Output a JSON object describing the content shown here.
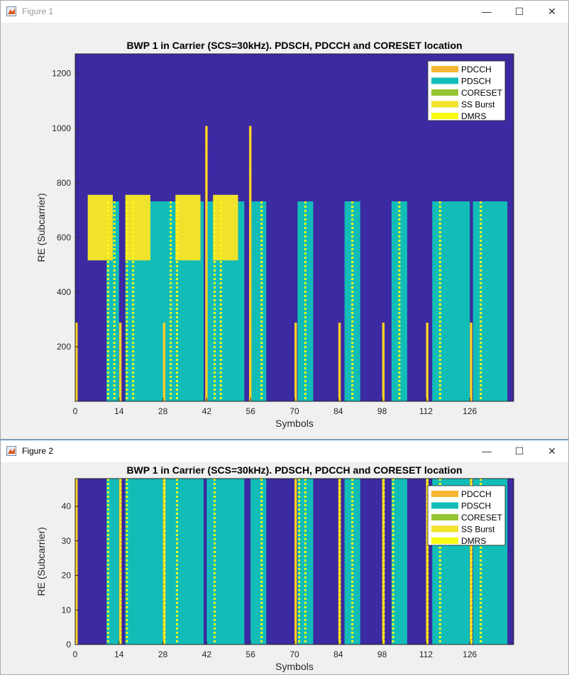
{
  "colors": {
    "background": "#3b2aa1",
    "pdcch": "#f5b731",
    "pdsch": "#12bdb8",
    "coreset": "#97c433",
    "ssburst": "#f1e22c",
    "dmrs": "#f9fb14"
  },
  "windows": [
    {
      "title": "Figure 1"
    },
    {
      "title": "Figure 2"
    }
  ],
  "window_buttons": {
    "minimize": "—",
    "maximize": "☐",
    "close": "✕"
  },
  "chart_data": [
    {
      "type": "heatmap",
      "title": "BWP 1 in Carrier (SCS=30kHz). PDSCH, PDCCH and CORESET location",
      "xlabel": "Symbols",
      "ylabel": "RE (Subcarrier)",
      "xlim": [
        0,
        140
      ],
      "ylim": [
        0,
        1272
      ],
      "xticks": [
        0,
        14,
        28,
        42,
        56,
        70,
        84,
        98,
        112,
        126
      ],
      "yticks": [
        200,
        400,
        600,
        800,
        1000,
        1200
      ],
      "legend": [
        "PDCCH",
        "PDSCH",
        "CORESET",
        "SS Burst",
        "DMRS"
      ],
      "legend_position": "top-right",
      "regions": [
        {
          "type": "pdsch",
          "x0": 10,
          "x1": 14,
          "y0": 0,
          "y1": 732
        },
        {
          "type": "pdsch",
          "x0": 16,
          "x1": 28,
          "y0": 0,
          "y1": 732
        },
        {
          "type": "pdsch",
          "x0": 28,
          "x1": 41,
          "y0": 0,
          "y1": 732
        },
        {
          "type": "pdsch",
          "x0": 42,
          "x1": 54,
          "y0": 0,
          "y1": 732
        },
        {
          "type": "pdsch",
          "x0": 56,
          "x1": 61,
          "y0": 0,
          "y1": 732
        },
        {
          "type": "pdsch",
          "x0": 71,
          "x1": 76,
          "y0": 0,
          "y1": 732
        },
        {
          "type": "pdsch",
          "x0": 86,
          "x1": 91,
          "y0": 0,
          "y1": 732
        },
        {
          "type": "pdsch",
          "x0": 101,
          "x1": 106,
          "y0": 0,
          "y1": 732
        },
        {
          "type": "pdsch",
          "x0": 114,
          "x1": 126,
          "y0": 0,
          "y1": 732
        },
        {
          "type": "pdsch",
          "x0": 127,
          "x1": 138,
          "y0": 0,
          "y1": 732
        },
        {
          "type": "ssburst",
          "x0": 4,
          "x1": 12,
          "y0": 516,
          "y1": 756
        },
        {
          "type": "ssburst",
          "x0": 16,
          "x1": 24,
          "y0": 516,
          "y1": 756
        },
        {
          "type": "ssburst",
          "x0": 32,
          "x1": 40,
          "y0": 516,
          "y1": 756
        },
        {
          "type": "ssburst",
          "x0": 44,
          "x1": 52,
          "y0": 516,
          "y1": 756
        },
        {
          "type": "pdcch",
          "x0": 0,
          "x1": 0.8,
          "y0": 0,
          "y1": 288
        },
        {
          "type": "pdcch",
          "x0": 14,
          "x1": 14.8,
          "y0": 0,
          "y1": 288
        },
        {
          "type": "pdcch",
          "x0": 28,
          "x1": 28.8,
          "y0": 0,
          "y1": 288
        },
        {
          "type": "pdcch",
          "x0": 41.5,
          "x1": 42.3,
          "y0": 0,
          "y1": 1008
        },
        {
          "type": "pdcch",
          "x0": 55.5,
          "x1": 56.3,
          "y0": 0,
          "y1": 1008
        },
        {
          "type": "pdcch",
          "x0": 70,
          "x1": 70.8,
          "y0": 0,
          "y1": 288
        },
        {
          "type": "pdcch",
          "x0": 84,
          "x1": 84.8,
          "y0": 0,
          "y1": 288
        },
        {
          "type": "pdcch",
          "x0": 98,
          "x1": 98.8,
          "y0": 0,
          "y1": 288
        },
        {
          "type": "pdcch",
          "x0": 112,
          "x1": 112.8,
          "y0": 0,
          "y1": 288
        },
        {
          "type": "pdcch",
          "x0": 126,
          "x1": 126.8,
          "y0": 0,
          "y1": 288
        }
      ],
      "dmrs_symbols": [
        10,
        12,
        16,
        18,
        30,
        32,
        44,
        46,
        59,
        73,
        88,
        103,
        116,
        129
      ]
    },
    {
      "type": "heatmap",
      "title": "BWP 1 in Carrier (SCS=30kHz). PDSCH, PDCCH and CORESET location",
      "xlabel": "Symbols",
      "ylabel": "RE (Subcarrier)",
      "xlim": [
        0,
        140
      ],
      "ylim": [
        0,
        48
      ],
      "xticks": [
        0,
        14,
        28,
        42,
        56,
        70,
        84,
        98,
        112,
        126
      ],
      "yticks": [
        0,
        10,
        20,
        30,
        40
      ],
      "legend": [
        "PDCCH",
        "PDSCH",
        "CORESET",
        "SS Burst",
        "DMRS"
      ],
      "legend_position": "top-right",
      "regions": [
        {
          "type": "pdsch",
          "x0": 10,
          "x1": 14,
          "y0": 0,
          "y1": 48
        },
        {
          "type": "pdsch",
          "x0": 16,
          "x1": 28,
          "y0": 0,
          "y1": 48
        },
        {
          "type": "pdsch",
          "x0": 28,
          "x1": 41,
          "y0": 0,
          "y1": 48
        },
        {
          "type": "pdsch",
          "x0": 42,
          "x1": 54,
          "y0": 0,
          "y1": 48
        },
        {
          "type": "pdsch",
          "x0": 56,
          "x1": 61,
          "y0": 0,
          "y1": 48
        },
        {
          "type": "pdsch",
          "x0": 71,
          "x1": 76,
          "y0": 0,
          "y1": 48
        },
        {
          "type": "pdsch",
          "x0": 86,
          "x1": 91,
          "y0": 0,
          "y1": 48
        },
        {
          "type": "pdsch",
          "x0": 101,
          "x1": 106,
          "y0": 0,
          "y1": 48
        },
        {
          "type": "pdsch",
          "x0": 114,
          "x1": 126,
          "y0": 0,
          "y1": 48
        },
        {
          "type": "pdsch",
          "x0": 127,
          "x1": 138,
          "y0": 0,
          "y1": 48
        },
        {
          "type": "pdcch",
          "x0": 0,
          "x1": 0.8,
          "y0": 0,
          "y1": 48
        },
        {
          "type": "pdcch",
          "x0": 14,
          "x1": 14.8,
          "y0": 0,
          "y1": 48
        },
        {
          "type": "pdcch",
          "x0": 28,
          "x1": 28.8,
          "y0": 0,
          "y1": 48
        },
        {
          "type": "pdcch",
          "x0": 70,
          "x1": 70.8,
          "y0": 0,
          "y1": 48
        },
        {
          "type": "pdcch",
          "x0": 84,
          "x1": 84.8,
          "y0": 0,
          "y1": 48
        },
        {
          "type": "pdcch",
          "x0": 98,
          "x1": 98.8,
          "y0": 0,
          "y1": 48
        },
        {
          "type": "pdcch",
          "x0": 112,
          "x1": 112.8,
          "y0": 0,
          "y1": 48
        },
        {
          "type": "pdcch",
          "x0": 126,
          "x1": 126.8,
          "y0": 0,
          "y1": 48
        }
      ],
      "dmrs_symbols": [
        10,
        14,
        16,
        28,
        32,
        44,
        59,
        71,
        73,
        84,
        88,
        98,
        101,
        112,
        116,
        126,
        129
      ]
    }
  ]
}
